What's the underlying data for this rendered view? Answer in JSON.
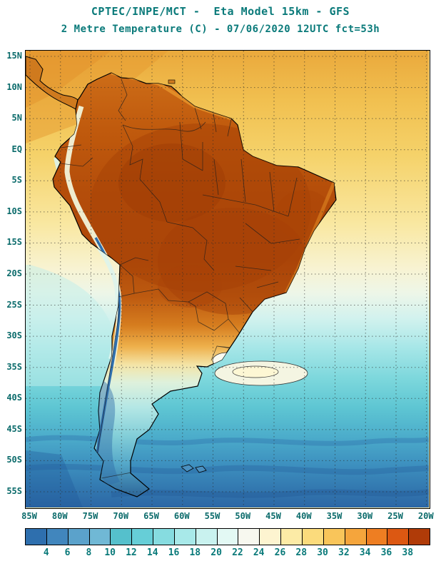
{
  "header": {
    "title_line1": "CPTEC/INPE/MCT -  Eta Model 15km - GFS",
    "title_line2": "2 Metre Temperature (C) - 07/06/2020 12UTC fct=53h",
    "title_color": "#0a7a7a"
  },
  "map": {
    "lat_labels": [
      "15N",
      "10N",
      "5N",
      "EQ",
      "5S",
      "10S",
      "15S",
      "20S",
      "25S",
      "30S",
      "35S",
      "40S",
      "45S",
      "50S",
      "55S"
    ],
    "lon_labels": [
      "85W",
      "80W",
      "75W",
      "70W",
      "65W",
      "60W",
      "55W",
      "50W",
      "45W",
      "40W",
      "35W",
      "30W",
      "25W",
      "20W"
    ]
  },
  "colorbar": {
    "units": "C",
    "tick_labels": [
      "4",
      "6",
      "8",
      "10",
      "12",
      "14",
      "16",
      "18",
      "20",
      "22",
      "24",
      "26",
      "28",
      "30",
      "32",
      "34",
      "36",
      "38"
    ],
    "segment_colors": [
      "#2e6fae",
      "#4186bd",
      "#5ba2cb",
      "#70b8d5",
      "#55c0cc",
      "#66ced7",
      "#86dce0",
      "#a8e9e9",
      "#c9f2ef",
      "#e3f9f4",
      "#f7f8ef",
      "#fdf4d0",
      "#fceba6",
      "#fbdb7c",
      "#f9c55a",
      "#f5a53c",
      "#ee7e22",
      "#dc5812",
      "#b03b08"
    ]
  },
  "chart_data": {
    "type": "heatmap",
    "title": "2 Metre Temperature (C)",
    "model": "Eta Model 15km - GFS",
    "run": "07/06/2020 12UTC",
    "forecast": "fct=53h",
    "source": "CPTEC/INPE/MCT",
    "colorbar_ticks": [
      4,
      6,
      8,
      10,
      12,
      14,
      16,
      18,
      20,
      22,
      24,
      26,
      28,
      30,
      32,
      34,
      36,
      38
    ],
    "lat_range": [
      "15N",
      "55S"
    ],
    "lon_range": [
      "85W",
      "20W"
    ],
    "legend_position": "bottom"
  }
}
